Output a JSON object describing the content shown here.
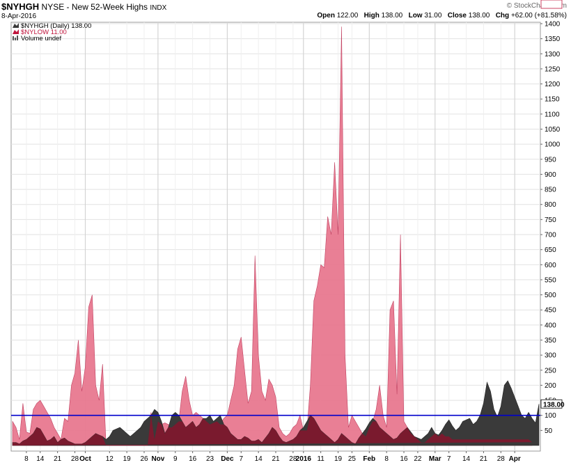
{
  "header": {
    "symbol": "$NYHGH",
    "exchange": "NYSE - New 52-Week Highs",
    "index_tag": "INDX",
    "date": "8-Apr-2016",
    "brand": "© StockCharts.com",
    "ohlc": {
      "open_label": "Open",
      "open": "122.00",
      "high_label": "High",
      "high": "138.00",
      "low_label": "Low",
      "low": "31.00",
      "close_label": "Close",
      "close": "138.00",
      "chg_label": "Chg",
      "chg": "+62.00 (+81.58%)"
    }
  },
  "colors": {
    "highs": "#3a3a3a",
    "lows": "#e8788f",
    "overlap": "#7a1a2e",
    "line": "#0000cc"
  },
  "chart_data": {
    "type": "area",
    "legend": [
      {
        "label": "$NYHGH (Daily) 138.00",
        "icon": "area-icon",
        "color": "#3a3a3a"
      },
      {
        "label": "$NYLOW 11.00",
        "icon": "area-icon",
        "color": "#c0143c"
      },
      {
        "label": "Volume undef",
        "icon": "bar-icon",
        "color": "#555555"
      }
    ],
    "y_ticks": [
      "1400",
      "1350",
      "1300",
      "1250",
      "1200",
      "1150",
      "1100",
      "1050",
      "1000",
      "950",
      "900",
      "850",
      "800",
      "750",
      "700",
      "650",
      "600",
      "550",
      "500",
      "450",
      "400",
      "350",
      "300",
      "250",
      "200",
      "150",
      "100",
      "50"
    ],
    "ylim": [
      0,
      1400
    ],
    "x_labels": [
      {
        "text": "8",
        "i": 4
      },
      {
        "text": "14",
        "i": 8
      },
      {
        "text": "21",
        "i": 13
      },
      {
        "text": "28",
        "i": 18
      },
      {
        "text": "Oct",
        "i": 21,
        "bold": true
      },
      {
        "text": "12",
        "i": 28
      },
      {
        "text": "19",
        "i": 33
      },
      {
        "text": "26",
        "i": 38
      },
      {
        "text": "Nov",
        "i": 42,
        "bold": true
      },
      {
        "text": "9",
        "i": 47
      },
      {
        "text": "16",
        "i": 52
      },
      {
        "text": "23",
        "i": 57
      },
      {
        "text": "Dec",
        "i": 62,
        "bold": true
      },
      {
        "text": "7",
        "i": 66
      },
      {
        "text": "14",
        "i": 71
      },
      {
        "text": "21",
        "i": 76
      },
      {
        "text": "28",
        "i": 81
      },
      {
        "text": "2016",
        "i": 84,
        "bold": true
      },
      {
        "text": "11",
        "i": 89
      },
      {
        "text": "19",
        "i": 94
      },
      {
        "text": "25",
        "i": 98
      },
      {
        "text": "Feb",
        "i": 103,
        "bold": true
      },
      {
        "text": "8",
        "i": 108
      },
      {
        "text": "16",
        "i": 113
      },
      {
        "text": "22",
        "i": 117
      },
      {
        "text": "Mar",
        "i": 122,
        "bold": true
      },
      {
        "text": "7",
        "i": 126
      },
      {
        "text": "14",
        "i": 131
      },
      {
        "text": "21",
        "i": 136
      },
      {
        "text": "28",
        "i": 141
      },
      {
        "text": "Apr",
        "i": 145,
        "bold": true
      }
    ],
    "month_lines": [
      21,
      42,
      62,
      84,
      103,
      122,
      145
    ],
    "reference_line": 100,
    "last_values": {
      "highs": "138.00",
      "lows": "11.00"
    },
    "series": [
      {
        "name": "$NYHGH",
        "values": [
          10,
          10,
          5,
          15,
          20,
          30,
          40,
          60,
          55,
          35,
          15,
          20,
          30,
          10,
          20,
          25,
          15,
          10,
          5,
          5,
          5,
          10,
          20,
          30,
          40,
          35,
          30,
          20,
          30,
          50,
          55,
          60,
          50,
          40,
          30,
          40,
          50,
          60,
          80,
          90,
          100,
          120,
          110,
          80,
          40,
          60,
          100,
          110,
          100,
          80,
          60,
          70,
          80,
          60,
          70,
          90,
          90,
          100,
          80,
          90,
          100,
          70,
          60,
          40,
          30,
          20,
          20,
          30,
          25,
          15,
          15,
          20,
          10,
          25,
          40,
          60,
          50,
          30,
          15,
          10,
          15,
          20,
          30,
          50,
          60,
          80,
          100,
          90,
          70,
          50,
          40,
          30,
          20,
          10,
          20,
          40,
          30,
          20,
          10,
          5,
          25,
          40,
          55,
          75,
          90,
          80,
          60,
          50,
          40,
          30,
          20,
          25,
          40,
          50,
          60,
          45,
          30,
          25,
          20,
          30,
          40,
          60,
          40,
          35,
          50,
          70,
          85,
          65,
          50,
          60,
          80,
          85,
          90,
          70,
          80,
          100,
          140,
          210,
          180,
          120,
          95,
          130,
          200,
          215,
          190,
          160,
          130,
          100,
          90,
          110,
          90,
          75,
          138
        ]
      },
      {
        "name": "$NYLOW",
        "values": [
          80,
          60,
          20,
          140,
          45,
          40,
          120,
          140,
          150,
          130,
          110,
          90,
          60,
          40,
          20,
          90,
          80,
          200,
          240,
          350,
          180,
          260,
          460,
          500,
          200,
          150,
          270,
          0,
          0,
          0,
          0,
          0,
          0,
          0,
          0,
          0,
          0,
          0,
          0,
          0,
          110,
          20,
          80,
          70,
          75,
          70,
          60,
          70,
          80,
          180,
          230,
          150,
          100,
          110,
          100,
          90,
          80,
          70,
          75,
          80,
          70,
          90,
          100,
          150,
          200,
          320,
          360,
          250,
          140,
          180,
          630,
          300,
          180,
          150,
          220,
          200,
          160,
          60,
          40,
          30,
          40,
          60,
          70,
          100,
          50,
          50,
          200,
          480,
          530,
          600,
          590,
          760,
          700,
          940,
          700,
          1390,
          300,
          60,
          100,
          80,
          60,
          40,
          30,
          60,
          80,
          120,
          200,
          100,
          60,
          450,
          480,
          170,
          700,
          80,
          60,
          40,
          30,
          20,
          10,
          10,
          20,
          30,
          40,
          30,
          40,
          30,
          30,
          20,
          20,
          20,
          20,
          20,
          20,
          20,
          20,
          20,
          20,
          20,
          20,
          20,
          20,
          20,
          20,
          20,
          20,
          20,
          20,
          20,
          20,
          20,
          11
        ]
      }
    ]
  }
}
